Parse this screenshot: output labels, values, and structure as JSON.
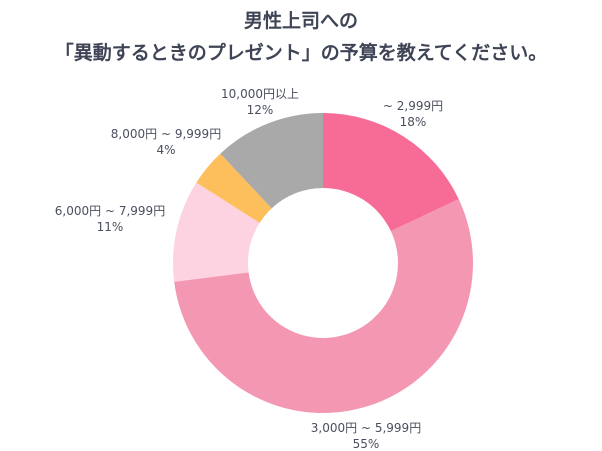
{
  "chart_data": {
    "type": "pie",
    "donut": true,
    "title_lines": [
      "男性上司への",
      "「異動するときのプレゼント」の予算を教えてください。"
    ],
    "categories": [
      "~ 2,999円",
      "3,000円 ~ 5,999円",
      "6,000円 ~ 7,999円",
      "8,000円 ~ 9,999円",
      "10,000円以上"
    ],
    "values": [
      18,
      55,
      11,
      4,
      12
    ],
    "value_labels": [
      "18%",
      "55%",
      "11%",
      "4%",
      "12%"
    ],
    "colors": [
      "#F76C97",
      "#F497B3",
      "#FDD3E1",
      "#FDBE5C",
      "#A9A9A9"
    ],
    "start": "top",
    "direction": "clockwise"
  }
}
